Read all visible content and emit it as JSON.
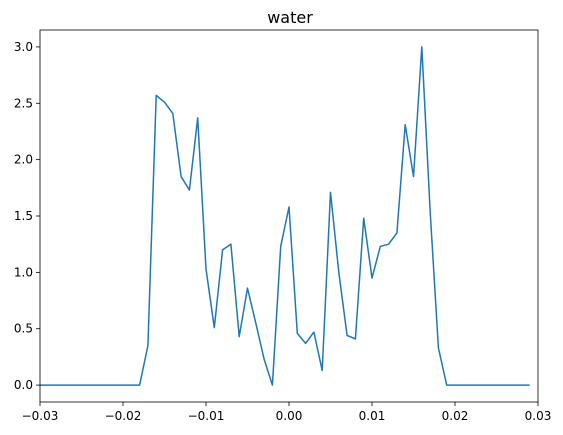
{
  "chart_data": {
    "type": "line",
    "title": "water",
    "xlabel": "",
    "ylabel": "",
    "xlim": [
      -0.03,
      0.03
    ],
    "ylim": [
      -0.15,
      3.15
    ],
    "grid": false,
    "x_ticks": [
      -0.03,
      -0.02,
      -0.01,
      0.0,
      0.01,
      0.02,
      0.03
    ],
    "x_tick_labels": [
      "−0.03",
      "−0.02",
      "−0.01",
      "0.00",
      "0.01",
      "0.02",
      "0.03"
    ],
    "y_ticks": [
      0.0,
      0.5,
      1.0,
      1.5,
      2.0,
      2.5,
      3.0
    ],
    "y_tick_labels": [
      "0.0",
      "0.5",
      "1.0",
      "1.5",
      "2.0",
      "2.5",
      "3.0"
    ],
    "series": [
      {
        "color": "#1f77b4",
        "x": [
          -0.03,
          -0.029,
          -0.028,
          -0.027,
          -0.026,
          -0.025,
          -0.024,
          -0.023,
          -0.022,
          -0.021,
          -0.02,
          -0.019,
          -0.018,
          -0.017,
          -0.016,
          -0.015,
          -0.014,
          -0.013,
          -0.012,
          -0.011,
          -0.01,
          -0.009,
          -0.008,
          -0.007,
          -0.006,
          -0.005,
          -0.004,
          -0.003,
          -0.002,
          -0.001,
          0.0,
          0.001,
          0.002,
          0.003,
          0.004,
          0.005,
          0.006,
          0.007,
          0.008,
          0.009,
          0.01,
          0.011,
          0.012,
          0.013,
          0.014,
          0.015,
          0.016,
          0.017,
          0.018,
          0.019,
          0.02,
          0.021,
          0.022,
          0.023,
          0.024,
          0.025,
          0.026,
          0.027,
          0.028,
          0.029
        ],
        "y": [
          0,
          0,
          0,
          0,
          0,
          0,
          0,
          0,
          0,
          0,
          0,
          0,
          0,
          0.35,
          2.57,
          2.51,
          2.41,
          1.85,
          1.73,
          2.37,
          1.03,
          0.51,
          1.2,
          1.25,
          0.43,
          0.86,
          0.55,
          0.23,
          0.0,
          1.23,
          1.58,
          0.46,
          0.37,
          0.47,
          0.13,
          1.71,
          1.0,
          0.44,
          0.41,
          1.48,
          0.95,
          1.23,
          1.25,
          1.35,
          2.31,
          1.85,
          3.0,
          1.55,
          0.33,
          0,
          0,
          0,
          0,
          0,
          0,
          0,
          0,
          0,
          0,
          0
        ]
      }
    ]
  }
}
